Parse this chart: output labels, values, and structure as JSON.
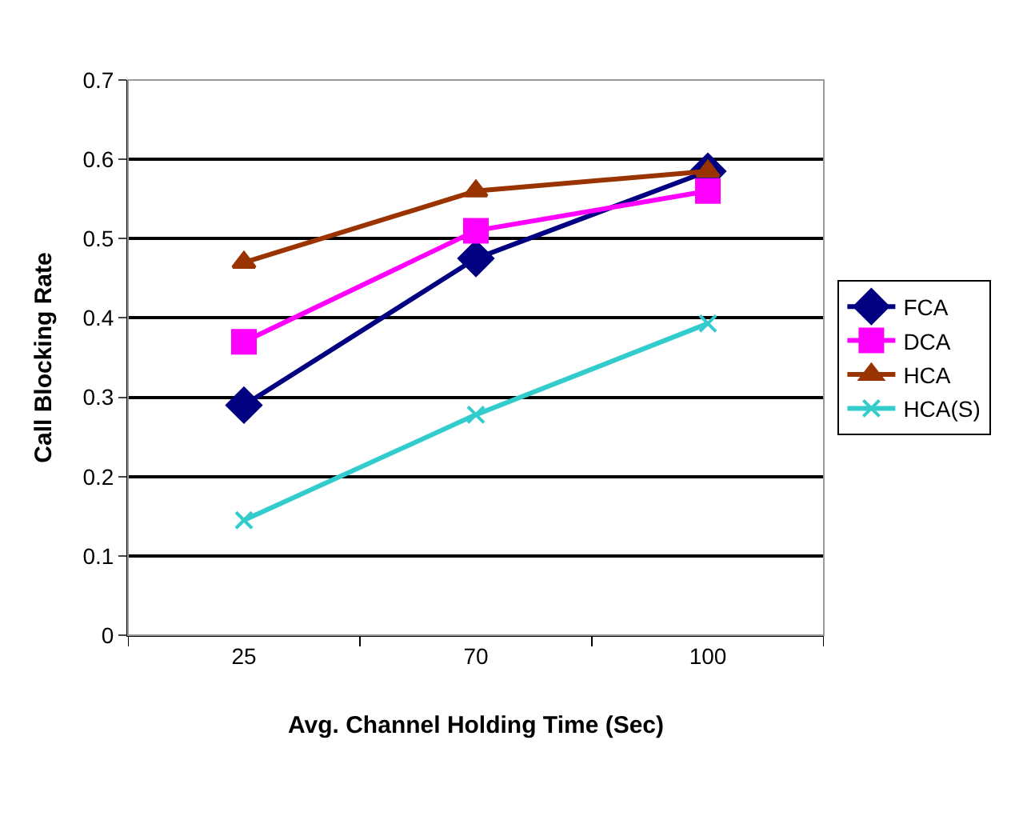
{
  "chart_data": {
    "type": "line",
    "xlabel": "Avg. Channel Holding Time (Sec)",
    "ylabel": "Call Blocking Rate",
    "categories": [
      "25",
      "70",
      "100"
    ],
    "ylim": [
      0,
      0.7
    ],
    "yticks": [
      0,
      0.1,
      0.2,
      0.3,
      0.4,
      0.5,
      0.6,
      0.7
    ],
    "grid": "y",
    "legend": "right",
    "line_style": "solid",
    "series": [
      {
        "name": "FCA",
        "color": "#000080",
        "marker": "diamond",
        "values": [
          0.29,
          0.475,
          0.585
        ]
      },
      {
        "name": "DCA",
        "color": "#ff00ff",
        "marker": "square",
        "values": [
          0.37,
          0.51,
          0.56
        ]
      },
      {
        "name": "HCA",
        "color": "#993300",
        "marker": "triangle",
        "values": [
          0.47,
          0.56,
          0.585
        ]
      },
      {
        "name": "HCA(S)",
        "color": "#33cccc",
        "marker": "cross",
        "values": [
          0.145,
          0.278,
          0.393
        ]
      }
    ]
  }
}
